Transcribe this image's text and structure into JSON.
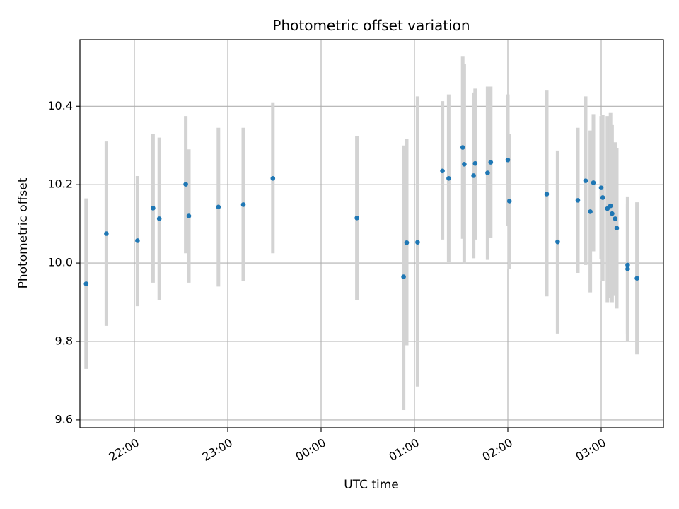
{
  "chart_data": {
    "type": "scatter",
    "title": "Photometric offset variation",
    "xlabel": "UTC time",
    "ylabel": "Photometric offset",
    "x_axis": "time",
    "x_start": "21:25",
    "x_end": "03:40",
    "xlim": [
      "21:25",
      "03:40"
    ],
    "ylim": [
      9.58,
      10.57
    ],
    "grid": true,
    "x_ticks": [
      "22:00",
      "23:00",
      "00:00",
      "01:00",
      "02:00",
      "03:00"
    ],
    "y_ticks": [
      "9.6",
      "9.8",
      "10.0",
      "10.2",
      "10.4"
    ],
    "colors": {
      "point": "#1f77b4",
      "errorbar": "#d3d3d3",
      "grid": "#b0b0b0"
    },
    "points": [
      {
        "x": "21:29",
        "y": 9.947,
        "ylow": 9.73,
        "yhigh": 10.165
      },
      {
        "x": "21:42",
        "y": 10.075,
        "ylow": 9.84,
        "yhigh": 10.31
      },
      {
        "x": "22:02",
        "y": 10.057,
        "ylow": 9.89,
        "yhigh": 10.222
      },
      {
        "x": "22:12",
        "y": 10.14,
        "ylow": 9.95,
        "yhigh": 10.33
      },
      {
        "x": "22:16",
        "y": 10.113,
        "ylow": 9.905,
        "yhigh": 10.32
      },
      {
        "x": "22:33",
        "y": 10.201,
        "ylow": 10.025,
        "yhigh": 10.375
      },
      {
        "x": "22:35",
        "y": 10.12,
        "ylow": 9.95,
        "yhigh": 10.29
      },
      {
        "x": "22:54",
        "y": 10.143,
        "ylow": 9.94,
        "yhigh": 10.345
      },
      {
        "x": "23:10",
        "y": 10.149,
        "ylow": 9.955,
        "yhigh": 10.345
      },
      {
        "x": "23:29",
        "y": 10.216,
        "ylow": 10.025,
        "yhigh": 10.41
      },
      {
        "x": "00:23",
        "y": 10.115,
        "ylow": 9.905,
        "yhigh": 10.323
      },
      {
        "x": "00:53",
        "y": 9.965,
        "ylow": 9.625,
        "yhigh": 10.3
      },
      {
        "x": "00:55",
        "y": 10.052,
        "ylow": 9.79,
        "yhigh": 10.317
      },
      {
        "x": "01:02",
        "y": 10.053,
        "ylow": 9.685,
        "yhigh": 10.425
      },
      {
        "x": "01:18",
        "y": 10.235,
        "ylow": 10.06,
        "yhigh": 10.413
      },
      {
        "x": "01:22",
        "y": 10.216,
        "ylow": 10.002,
        "yhigh": 10.43
      },
      {
        "x": "01:31",
        "y": 10.295,
        "ylow": 10.062,
        "yhigh": 10.528
      },
      {
        "x": "01:32",
        "y": 10.252,
        "ylow": 9.998,
        "yhigh": 10.508
      },
      {
        "x": "01:38",
        "y": 10.223,
        "ylow": 10.012,
        "yhigh": 10.435
      },
      {
        "x": "01:39",
        "y": 10.254,
        "ylow": 10.06,
        "yhigh": 10.445
      },
      {
        "x": "01:47",
        "y": 10.23,
        "ylow": 10.008,
        "yhigh": 10.45
      },
      {
        "x": "01:49",
        "y": 10.257,
        "ylow": 10.064,
        "yhigh": 10.45
      },
      {
        "x": "02:00",
        "y": 10.263,
        "ylow": 10.095,
        "yhigh": 10.43
      },
      {
        "x": "02:01",
        "y": 10.158,
        "ylow": 9.985,
        "yhigh": 10.33
      },
      {
        "x": "02:25",
        "y": 10.176,
        "ylow": 9.915,
        "yhigh": 10.44
      },
      {
        "x": "02:32",
        "y": 10.054,
        "ylow": 9.82,
        "yhigh": 10.287
      },
      {
        "x": "02:45",
        "y": 10.16,
        "ylow": 9.975,
        "yhigh": 10.345
      },
      {
        "x": "02:50",
        "y": 10.21,
        "ylow": 9.995,
        "yhigh": 10.425
      },
      {
        "x": "02:53",
        "y": 10.131,
        "ylow": 9.925,
        "yhigh": 10.338
      },
      {
        "x": "02:55",
        "y": 10.205,
        "ylow": 10.03,
        "yhigh": 10.38
      },
      {
        "x": "03:00",
        "y": 10.192,
        "ylow": 10.01,
        "yhigh": 10.375
      },
      {
        "x": "03:01",
        "y": 10.167,
        "ylow": 9.955,
        "yhigh": 10.378
      },
      {
        "x": "03:04",
        "y": 10.139,
        "ylow": 9.9,
        "yhigh": 10.375
      },
      {
        "x": "03:06",
        "y": 10.146,
        "ylow": 9.91,
        "yhigh": 10.383
      },
      {
        "x": "03:07",
        "y": 10.126,
        "ylow": 9.9,
        "yhigh": 10.352
      },
      {
        "x": "03:09",
        "y": 10.113,
        "ylow": 9.918,
        "yhigh": 10.308
      },
      {
        "x": "03:10",
        "y": 10.089,
        "ylow": 9.884,
        "yhigh": 10.294
      },
      {
        "x": "03:17",
        "y": 9.995,
        "ylow": 9.8,
        "yhigh": 10.17
      },
      {
        "x": "03:17",
        "y": 9.985,
        "ylow": 9.82,
        "yhigh": 10.15
      },
      {
        "x": "03:23",
        "y": 9.961,
        "ylow": 9.767,
        "yhigh": 10.155
      }
    ]
  }
}
